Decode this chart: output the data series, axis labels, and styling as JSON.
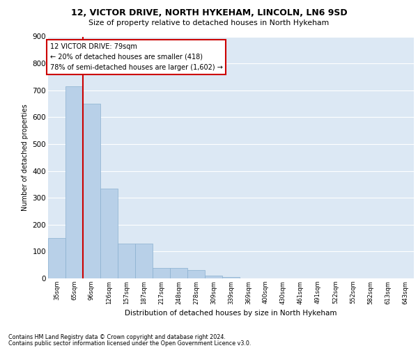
{
  "title1": "12, VICTOR DRIVE, NORTH HYKEHAM, LINCOLN, LN6 9SD",
  "title2": "Size of property relative to detached houses in North Hykeham",
  "xlabel": "Distribution of detached houses by size in North Hykeham",
  "ylabel": "Number of detached properties",
  "categories": [
    "35sqm",
    "65sqm",
    "96sqm",
    "126sqm",
    "157sqm",
    "187sqm",
    "217sqm",
    "248sqm",
    "278sqm",
    "309sqm",
    "339sqm",
    "369sqm",
    "400sqm",
    "430sqm",
    "461sqm",
    "491sqm",
    "522sqm",
    "552sqm",
    "582sqm",
    "613sqm",
    "643sqm"
  ],
  "values": [
    150,
    715,
    650,
    335,
    130,
    130,
    40,
    40,
    30,
    10,
    5,
    0,
    0,
    0,
    0,
    0,
    0,
    0,
    0,
    0,
    0
  ],
  "bar_color": "#b8d0e8",
  "bar_edge_color": "#8ab0d0",
  "background_color": "#dce8f4",
  "grid_color": "#ffffff",
  "vline_x": 1.5,
  "vline_color": "#cc0000",
  "annotation_text": "12 VICTOR DRIVE: 79sqm\n← 20% of detached houses are smaller (418)\n78% of semi-detached houses are larger (1,602) →",
  "annotation_box_color": "#cc0000",
  "ylim": [
    0,
    900
  ],
  "yticks": [
    0,
    100,
    200,
    300,
    400,
    500,
    600,
    700,
    800,
    900
  ],
  "footnote1": "Contains HM Land Registry data © Crown copyright and database right 2024.",
  "footnote2": "Contains public sector information licensed under the Open Government Licence v3.0."
}
